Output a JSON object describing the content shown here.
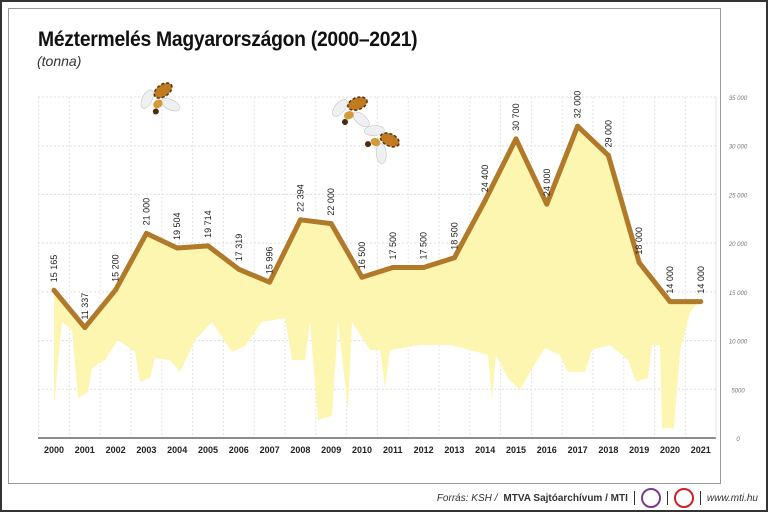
{
  "chart_data": {
    "type": "area",
    "title": "Méztermelés Magyarországon (2000–2021)",
    "subtitle": "(tonna)",
    "categories": [
      "2000",
      "2001",
      "2002",
      "2003",
      "2004",
      "2005",
      "2006",
      "2007",
      "2008",
      "2009",
      "2010",
      "2011",
      "2012",
      "2013",
      "2014",
      "2015",
      "2016",
      "2017",
      "2018",
      "2019",
      "2020",
      "2021"
    ],
    "values": [
      15165,
      11337,
      15200,
      21000,
      19504,
      19714,
      17319,
      15996,
      22394,
      22000,
      16500,
      17500,
      17500,
      18500,
      24400,
      30700,
      24000,
      32000,
      29000,
      18000,
      14000,
      14000
    ],
    "data_labels": [
      "15 165",
      "11 337",
      "15 200",
      "21 000",
      "19 504",
      "19 714",
      "17 319",
      "15 996",
      "22 394",
      "22 000",
      "16 500",
      "17 500",
      "17 500",
      "18 500",
      "24 400",
      "30 700",
      "24 000",
      "32 000",
      "29 000",
      "18 000",
      "14 000",
      "14 000"
    ],
    "ylim": [
      0,
      35000
    ],
    "yticks": [
      0,
      5000,
      10000,
      15000,
      20000,
      25000,
      30000,
      35000
    ],
    "ytick_labels": [
      "0",
      "5000",
      "10 000",
      "15 000",
      "20 000",
      "25 000",
      "30 000",
      "35 000"
    ],
    "y_axis_side": "right",
    "grid": true,
    "colors": {
      "line": "#b07a2a",
      "fill_top": "#f7c84a",
      "fill_bottom": "#fbf29a"
    }
  },
  "footer": {
    "source_prefix": "Forrás: KSH /",
    "source_bold": "MTVA Sajtóarchívum / MTI",
    "logo_text": "MTVA",
    "website": "www.mti.hu"
  }
}
